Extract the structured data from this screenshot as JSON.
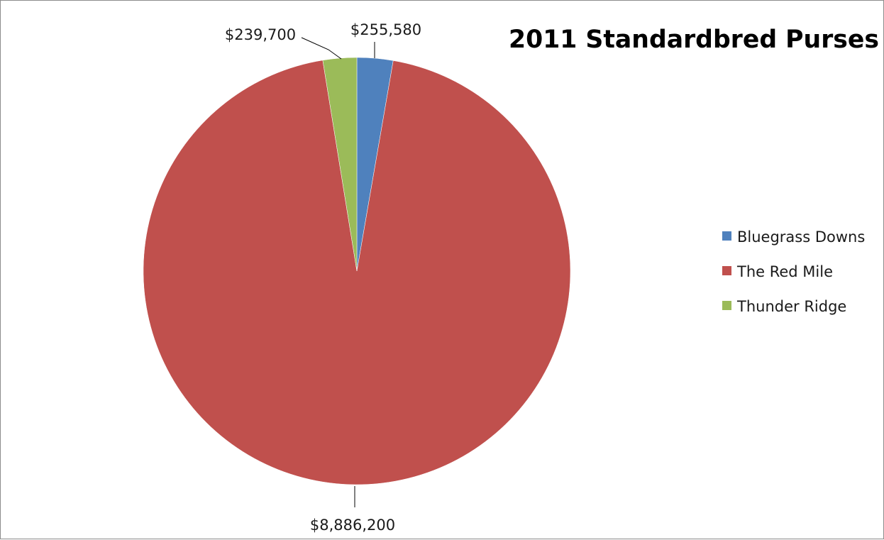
{
  "chart_data": {
    "type": "pie",
    "title": "2011 Standardbred Purses",
    "categories": [
      "Bluegrass Downs",
      "The Red Mile",
      "Thunder Ridge"
    ],
    "values": [
      255580,
      8886200,
      239700
    ],
    "data_labels": [
      "$255,580",
      "$8,886,200",
      "$239,700"
    ],
    "colors": [
      "#4f81bd",
      "#c0504d",
      "#9bbb59"
    ],
    "start_angle_deg": 0,
    "direction": "clockwise",
    "legend": "right"
  }
}
